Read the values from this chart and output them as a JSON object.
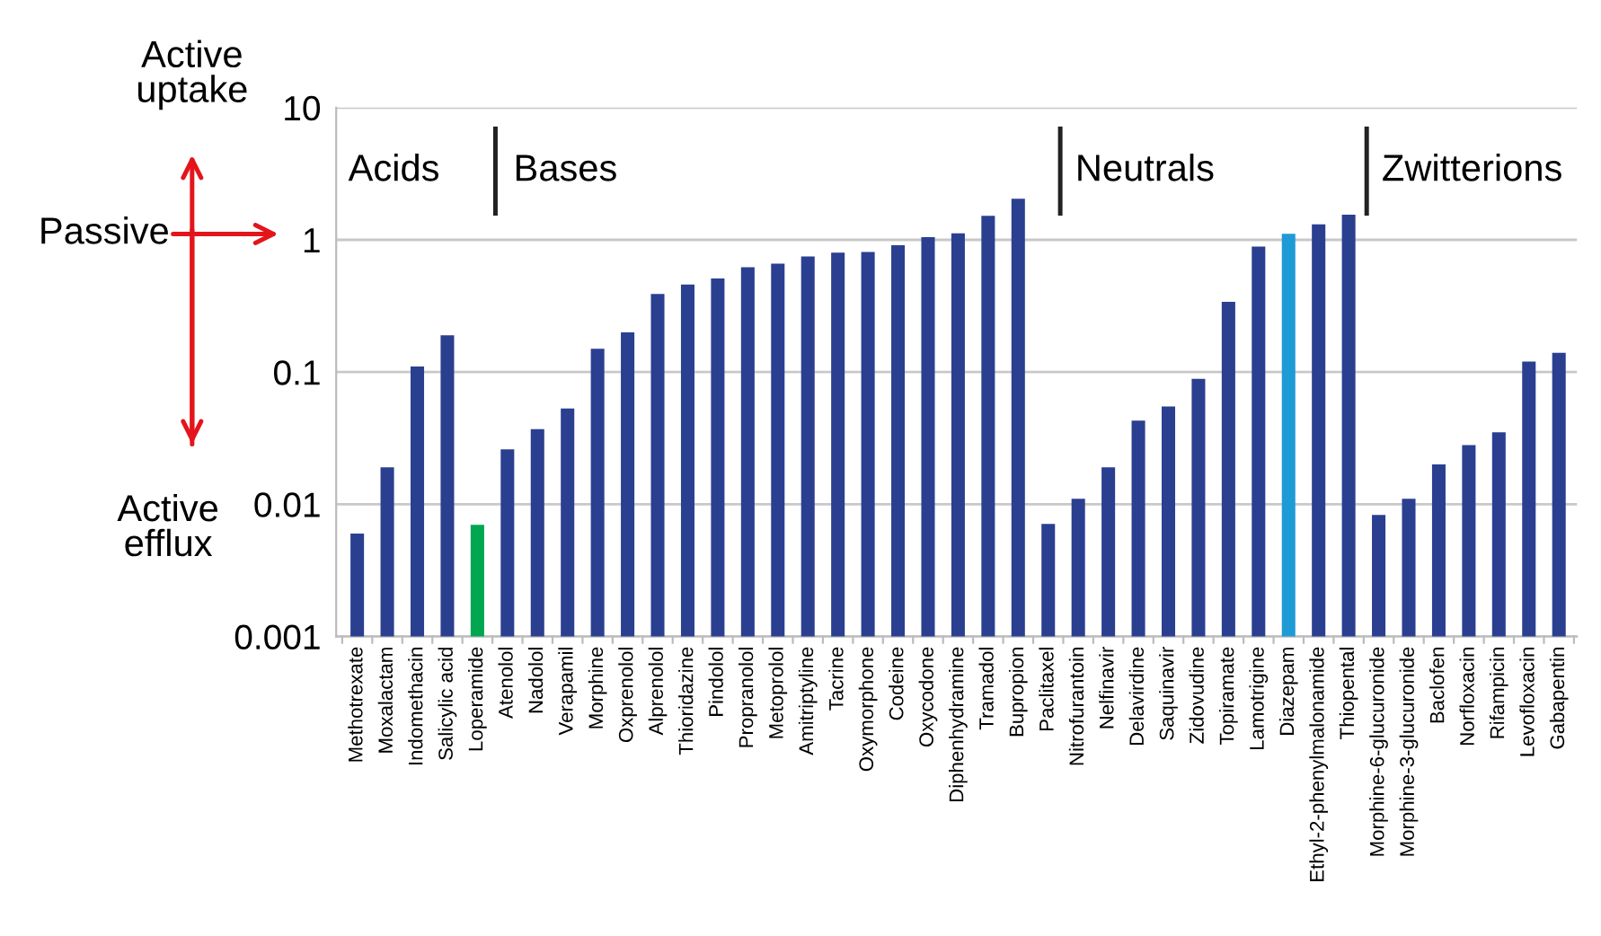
{
  "chart_data": {
    "type": "bar",
    "categories": [
      "Methotrexate",
      "Moxalactam",
      "Indomethacin",
      "Salicylic acid",
      "Loperamide",
      "Atenolol",
      "Nadolol",
      "Verapamil",
      "Morphine",
      "Oxprenolol",
      "Alprenolol",
      "Thioridazine",
      "Pindolol",
      "Propranolol",
      "Metoprolol",
      "Amitriptyline",
      "Tacrine",
      "Oxymorphone",
      "Codeine",
      "Oxycodone",
      "Diphenhydramine",
      "Tramadol",
      "Bupropion",
      "Paclitaxel",
      "Nitrofurantoin",
      "Nelfinavir",
      "Delavirdine",
      "Saquinavir",
      "Zidovudine",
      "Topiramate",
      "Lamotrigine",
      "Diazepam",
      "Ethyl-2-phenylmalonamide",
      "Thiopental",
      "Morphine-6-glucuronide",
      "Morphine-3-glucuronide",
      "Baclofen",
      "Norfloxacin",
      "Rifampicin",
      "Levofloxacin",
      "Gabapentin"
    ],
    "values": [
      0.006,
      0.019,
      0.11,
      0.19,
      0.007,
      0.026,
      0.037,
      0.053,
      0.15,
      0.2,
      0.39,
      0.46,
      0.51,
      0.62,
      0.66,
      0.75,
      0.8,
      0.81,
      0.91,
      1.05,
      1.12,
      1.52,
      2.05,
      0.0071,
      0.011,
      0.019,
      0.043,
      0.055,
      0.089,
      0.34,
      0.89,
      1.11,
      1.31,
      1.55,
      0.0083,
      0.011,
      0.02,
      0.028,
      0.035,
      0.12,
      0.14
    ],
    "colors": [
      "#2b3f91",
      "#2b3f91",
      "#2b3f91",
      "#2b3f91",
      "#00a650",
      "#2b3f91",
      "#2b3f91",
      "#2b3f91",
      "#2b3f91",
      "#2b3f91",
      "#2b3f91",
      "#2b3f91",
      "#2b3f91",
      "#2b3f91",
      "#2b3f91",
      "#2b3f91",
      "#2b3f91",
      "#2b3f91",
      "#2b3f91",
      "#2b3f91",
      "#2b3f91",
      "#2b3f91",
      "#2b3f91",
      "#2b3f91",
      "#2b3f91",
      "#2b3f91",
      "#2b3f91",
      "#2b3f91",
      "#2b3f91",
      "#2b3f91",
      "#2b3f91",
      "#1e9ad6",
      "#2b3f91",
      "#2b3f91",
      "#2b3f91",
      "#2b3f91",
      "#2b3f91",
      "#2b3f91",
      "#2b3f91",
      "#2b3f91",
      "#2b3f91"
    ],
    "log": true,
    "ylim": [
      0.001,
      10
    ],
    "yticks": [
      {
        "value": 0.001,
        "label": "0.001"
      },
      {
        "value": 0.01,
        "label": "0.01"
      },
      {
        "value": 0.1,
        "label": "0.1"
      },
      {
        "value": 1,
        "label": "1"
      },
      {
        "value": 10,
        "label": "10"
      }
    ],
    "grid": "y",
    "annotations": [
      "Acids",
      "Bases",
      "Neutrals",
      "Zwitterions",
      "Active\nuptake",
      "Passive",
      "Active\nefflux"
    ]
  }
}
